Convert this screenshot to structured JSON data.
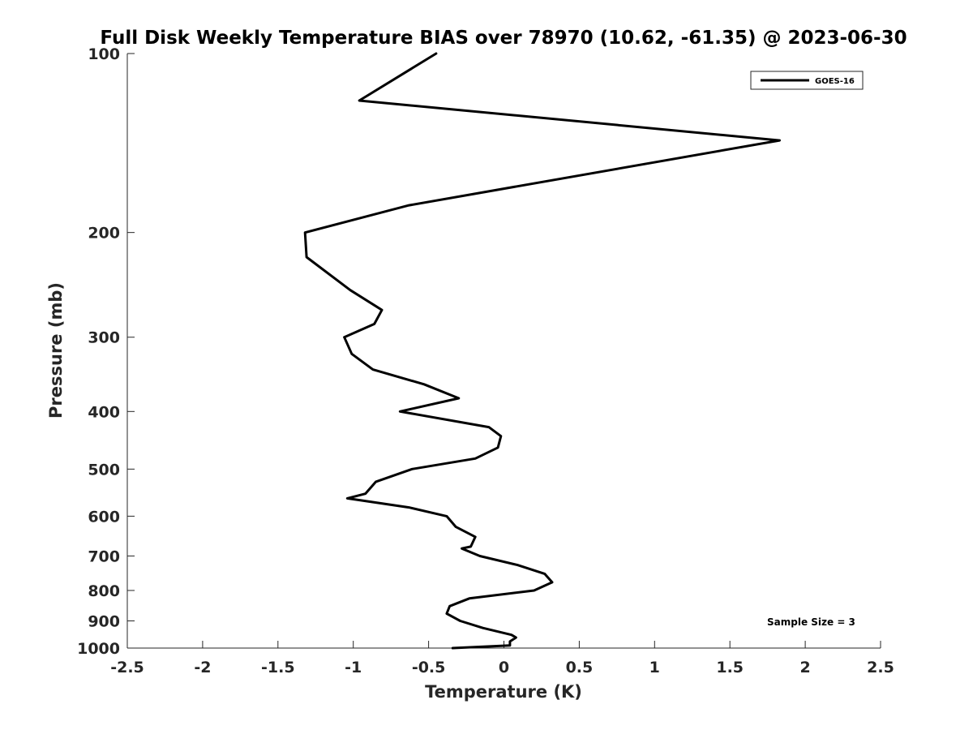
{
  "chart_data": {
    "type": "line",
    "title": "Full Disk Weekly Temperature BIAS over 78970 (10.62, -61.35) @ 2023-06-30",
    "xlabel": "Temperature (K)",
    "ylabel": "Pressure (mb)",
    "xlim": [
      -2.5,
      2.5
    ],
    "ylim": [
      100,
      1000
    ],
    "y_scale": "log",
    "y_reversed": true,
    "grid": false,
    "legend_position": "top-right",
    "x_ticks": [
      -2.5,
      -2,
      -1.5,
      -1,
      -0.5,
      0,
      0.5,
      1,
      1.5,
      2,
      2.5
    ],
    "x_tick_labels": [
      "-2.5",
      "-2",
      "-1.5",
      "-1",
      "-0.5",
      "0",
      "0.5",
      "1",
      "1.5",
      "2",
      "2.5"
    ],
    "y_ticks": [
      100,
      200,
      300,
      400,
      500,
      600,
      700,
      800,
      900,
      1000
    ],
    "y_tick_labels": [
      "100",
      "200",
      "300",
      "400",
      "500",
      "600",
      "700",
      "800",
      "900",
      "1000"
    ],
    "series": [
      {
        "name": "GOES-16",
        "color": "#000000",
        "points": [
          {
            "x": -0.45,
            "y": 100
          },
          {
            "x": -0.96,
            "y": 120
          },
          {
            "x": 1.83,
            "y": 140
          },
          {
            "x": -0.63,
            "y": 180
          },
          {
            "x": -1.32,
            "y": 200
          },
          {
            "x": -1.31,
            "y": 220
          },
          {
            "x": -1.02,
            "y": 250
          },
          {
            "x": -0.81,
            "y": 270
          },
          {
            "x": -0.86,
            "y": 285
          },
          {
            "x": -1.06,
            "y": 300
          },
          {
            "x": -1.01,
            "y": 320
          },
          {
            "x": -0.87,
            "y": 340
          },
          {
            "x": -0.53,
            "y": 360
          },
          {
            "x": -0.3,
            "y": 380
          },
          {
            "x": -0.69,
            "y": 400
          },
          {
            "x": -0.1,
            "y": 425
          },
          {
            "x": -0.02,
            "y": 440
          },
          {
            "x": -0.04,
            "y": 460
          },
          {
            "x": -0.19,
            "y": 480
          },
          {
            "x": -0.61,
            "y": 500
          },
          {
            "x": -0.85,
            "y": 525
          },
          {
            "x": -0.92,
            "y": 550
          },
          {
            "x": -1.04,
            "y": 560
          },
          {
            "x": -0.63,
            "y": 580
          },
          {
            "x": -0.38,
            "y": 600
          },
          {
            "x": -0.32,
            "y": 625
          },
          {
            "x": -0.19,
            "y": 650
          },
          {
            "x": -0.22,
            "y": 675
          },
          {
            "x": -0.28,
            "y": 680
          },
          {
            "x": -0.16,
            "y": 700
          },
          {
            "x": 0.09,
            "y": 725
          },
          {
            "x": 0.27,
            "y": 750
          },
          {
            "x": 0.32,
            "y": 775
          },
          {
            "x": 0.2,
            "y": 800
          },
          {
            "x": -0.23,
            "y": 825
          },
          {
            "x": -0.36,
            "y": 850
          },
          {
            "x": -0.38,
            "y": 875
          },
          {
            "x": -0.29,
            "y": 900
          },
          {
            "x": -0.14,
            "y": 925
          },
          {
            "x": 0.05,
            "y": 950
          },
          {
            "x": 0.08,
            "y": 960
          },
          {
            "x": 0.04,
            "y": 975
          },
          {
            "x": 0.04,
            "y": 990
          },
          {
            "x": -0.34,
            "y": 1000
          }
        ]
      }
    ],
    "annotations": [
      {
        "text": "Sample Size = 3"
      }
    ]
  }
}
